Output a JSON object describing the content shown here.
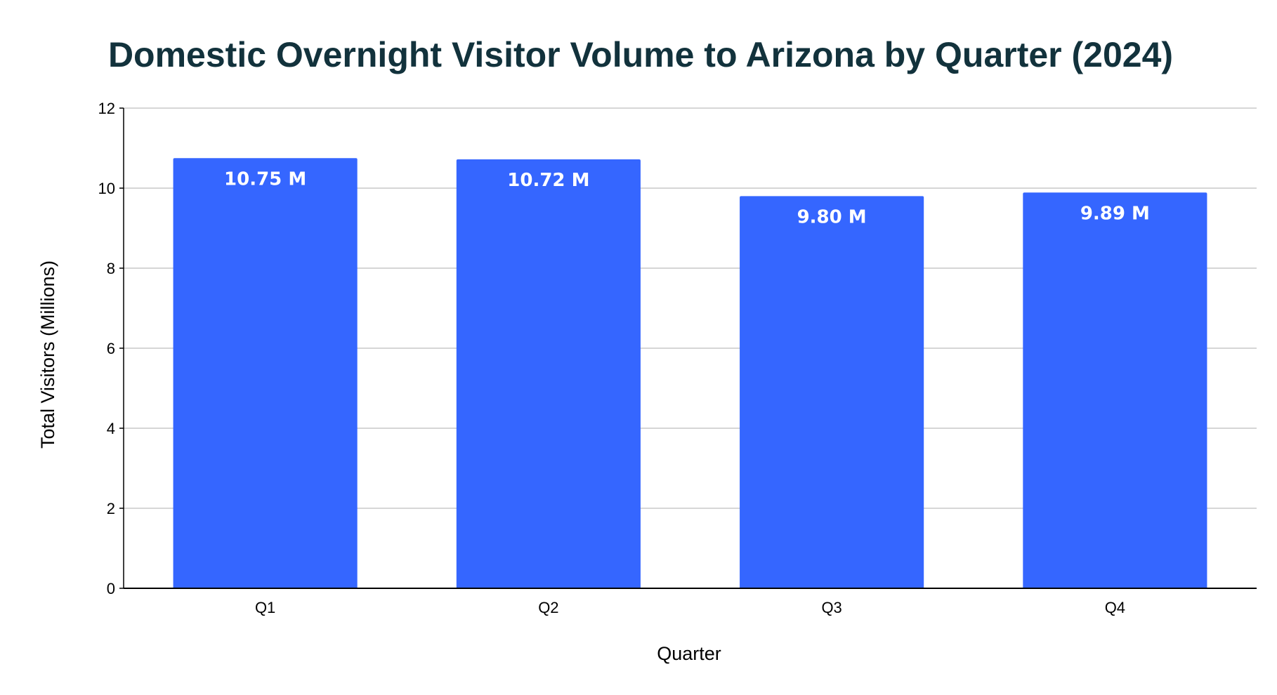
{
  "chart_data": {
    "type": "bar",
    "title": "Domestic Overnight Visitor Volume to Arizona by Quarter (2024)",
    "xlabel": "Quarter",
    "ylabel": "Total Visitors (Millions)",
    "categories": [
      "Q1",
      "Q2",
      "Q3",
      "Q4"
    ],
    "values": [
      10.75,
      10.72,
      9.8,
      9.89
    ],
    "data_labels": [
      "10.75 M",
      "10.72 M",
      "9.80 M",
      "9.89 M"
    ],
    "ylim": [
      0,
      12
    ],
    "yticks": [
      0,
      2,
      4,
      6,
      8,
      10,
      12
    ],
    "grid": true,
    "legend": "none",
    "bar_color": "#3566ff",
    "title_color": "#12323c",
    "grid_color": "#c8c8c8",
    "axis_color": "#000000"
  }
}
